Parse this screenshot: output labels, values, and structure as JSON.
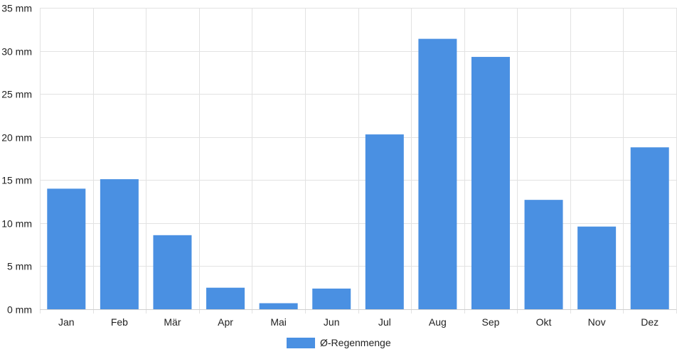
{
  "chart_data": {
    "type": "bar",
    "categories": [
      "Jan",
      "Feb",
      "Mär",
      "Apr",
      "Mai",
      "Jun",
      "Jul",
      "Aug",
      "Sep",
      "Okt",
      "Nov",
      "Dez"
    ],
    "series": [
      {
        "name": "Ø-Regenmenge",
        "values": [
          14.0,
          15.1,
          8.6,
          2.5,
          0.7,
          2.4,
          20.3,
          31.4,
          29.3,
          12.7,
          9.6,
          18.8
        ]
      }
    ],
    "y_ticks": [
      "0 mm",
      "5 mm",
      "10 mm",
      "15 mm",
      "20 mm",
      "25 mm",
      "30 mm",
      "35 mm"
    ],
    "y_tick_values": [
      0,
      5,
      10,
      15,
      20,
      25,
      30,
      35
    ],
    "ylim": [
      0,
      35
    ],
    "title": "",
    "xlabel": "",
    "ylabel": "",
    "grid": true,
    "legend_position": "bottom-center",
    "colors": {
      "bar": "#4a90e2",
      "grid": "#e2e2e2",
      "axis": "#cfcfcf",
      "text": "#222222"
    }
  }
}
